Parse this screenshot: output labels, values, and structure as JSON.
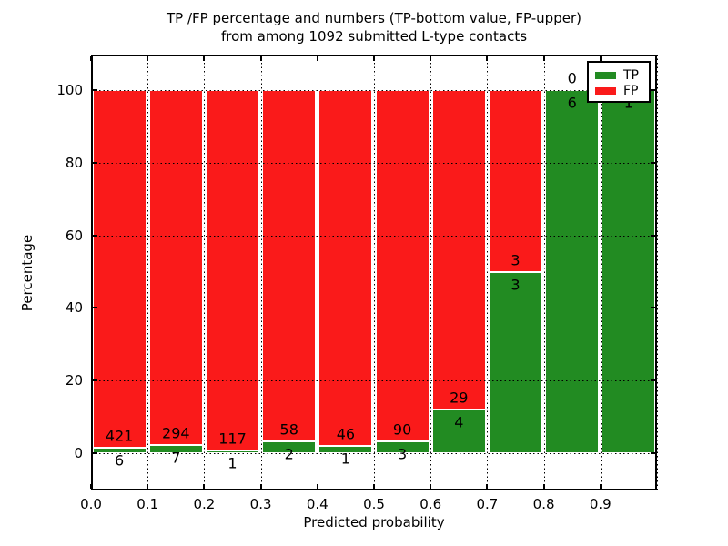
{
  "title": {
    "line1": "TP /FP percentage and numbers (TP-bottom value, FP-upper)",
    "line2": "from among 1092 submitted L-type contacts"
  },
  "chart_data": {
    "type": "bar",
    "stacked": true,
    "normalized": "percent",
    "title": "TP /FP percentage and numbers (TP-bottom value, FP-upper) from among 1092 submitted L-type contacts",
    "xlabel": "Predicted probability",
    "ylabel": "Percentage",
    "total_contacts": 1092,
    "bin_width": 0.1,
    "categories": [
      "0.0-0.1",
      "0.1-0.2",
      "0.2-0.3",
      "0.3-0.4",
      "0.4-0.5",
      "0.5-0.6",
      "0.6-0.7",
      "0.7-0.8",
      "0.8-0.9",
      "0.9-1.0"
    ],
    "series": [
      {
        "name": "TP",
        "color": "#228b22",
        "values": [
          6,
          7,
          1,
          2,
          1,
          3,
          4,
          3,
          6,
          1
        ]
      },
      {
        "name": "FP",
        "color": "#fa1a1a",
        "values": [
          421,
          294,
          117,
          58,
          46,
          90,
          29,
          3,
          0,
          0
        ]
      }
    ],
    "tp_percent": [
      1.41,
      2.33,
      0.85,
      3.33,
      2.13,
      3.23,
      12.12,
      50.0,
      100.0,
      100.0
    ],
    "x_ticks": [
      "0.0",
      "0.1",
      "0.2",
      "0.3",
      "0.4",
      "0.5",
      "0.6",
      "0.7",
      "0.8",
      "0.9"
    ],
    "y_ticks": [
      0,
      20,
      40,
      60,
      80,
      100
    ],
    "xlim": [
      0.0,
      1.0
    ],
    "ylim": [
      -10.5,
      110
    ],
    "grid": "dotted",
    "legend_position": "upper right",
    "gridline_color": "#000000",
    "bar_edge_color": "#ffffff"
  }
}
